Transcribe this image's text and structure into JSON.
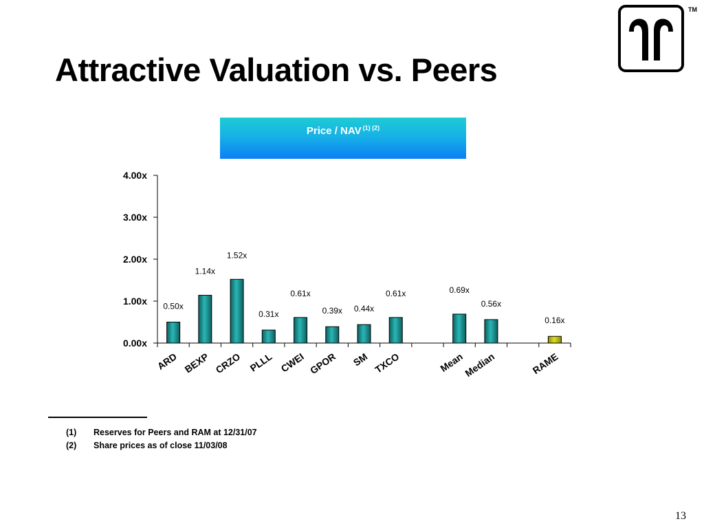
{
  "slide": {
    "title": "Attractive Valuation vs. Peers",
    "trademark": "TM",
    "page_number": "13"
  },
  "banner": {
    "label": "Price / NAV",
    "superscript": "(1) (2)"
  },
  "footnotes": [
    {
      "num": "(1)",
      "text": "Reserves for Peers and RAM at 12/31/07"
    },
    {
      "num": "(2)",
      "text": "Share prices as of close 11/03/08"
    }
  ],
  "colors": {
    "bar_peer": "#2bb6b6",
    "bar_peer_dark": "#0d5f5f",
    "bar_highlight": "#dede1c",
    "banner_top": "#1ecbd3",
    "banner_bottom": "#0b7ff5"
  },
  "chart_data": {
    "type": "bar",
    "title": "Price / NAV (1) (2)",
    "categories": [
      "ARD",
      "BEXP",
      "CRZO",
      "PLLL",
      "CWEI",
      "GPOR",
      "SM",
      "TXCO",
      "",
      "Mean",
      "Median",
      "",
      "RAME"
    ],
    "values": [
      0.5,
      1.14,
      1.52,
      0.31,
      0.61,
      0.39,
      0.44,
      0.61,
      null,
      0.69,
      0.56,
      null,
      0.16
    ],
    "data_labels": [
      "0.50x",
      "1.14x",
      "1.52x",
      "0.31x",
      "0.61x",
      "0.39x",
      "0.44x",
      "0.61x",
      "",
      "0.69x",
      "0.56x",
      "",
      "0.16x"
    ],
    "highlight": [
      "RAME"
    ],
    "y_ticks": [
      "0.00x",
      "1.00x",
      "2.00x",
      "3.00x",
      "4.00x"
    ],
    "ylim": [
      0,
      4
    ],
    "grid": false,
    "legend": "none"
  }
}
